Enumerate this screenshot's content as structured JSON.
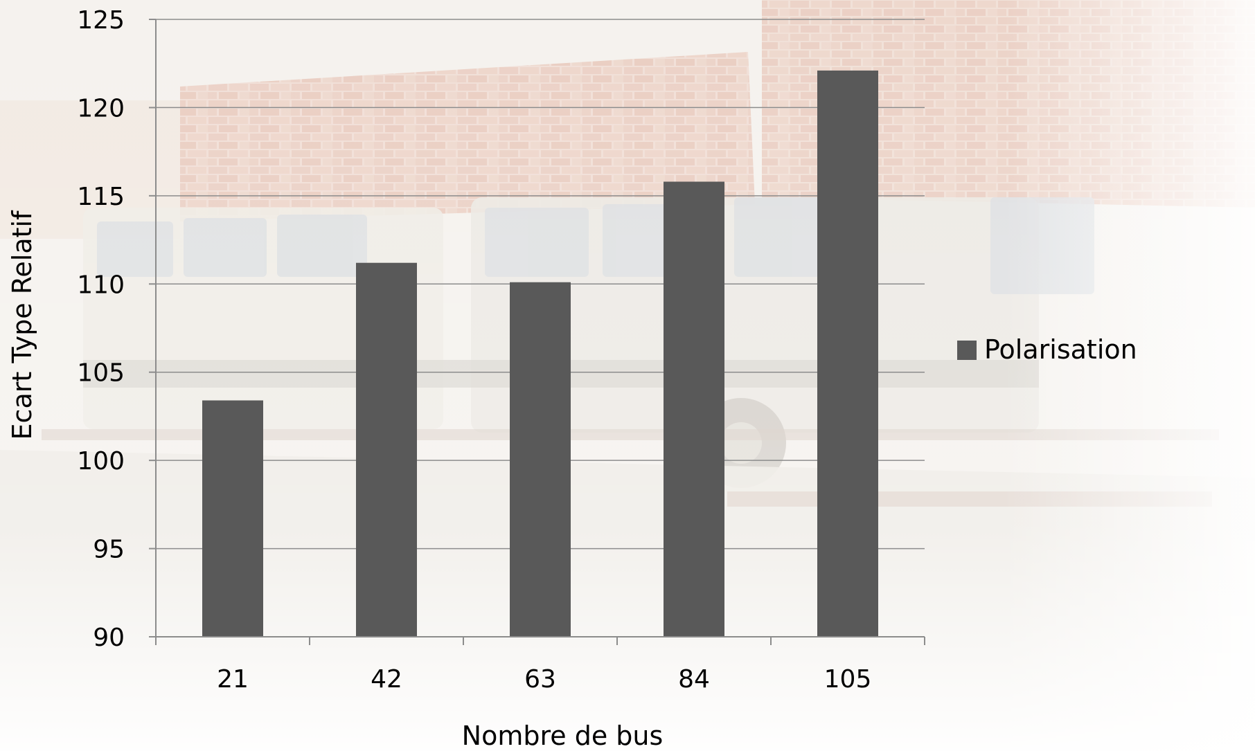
{
  "chart_data": {
    "type": "bar",
    "categories": [
      "21",
      "42",
      "63",
      "84",
      "105"
    ],
    "series": [
      {
        "name": "Polarisation",
        "values": [
          103.4,
          111.2,
          110.1,
          115.8,
          122.1
        ],
        "color": "#595959"
      }
    ],
    "xlabel": "Nombre de bus",
    "ylabel": "Ecart Type Relatif",
    "ylim": [
      90,
      125
    ],
    "yticks": [
      "90",
      "95",
      "100",
      "105",
      "110",
      "115",
      "120",
      "125"
    ],
    "grid": true,
    "legend_position": "right",
    "gridline_color": "#8c8c8c",
    "background_scene": "bus-depot-photo"
  }
}
